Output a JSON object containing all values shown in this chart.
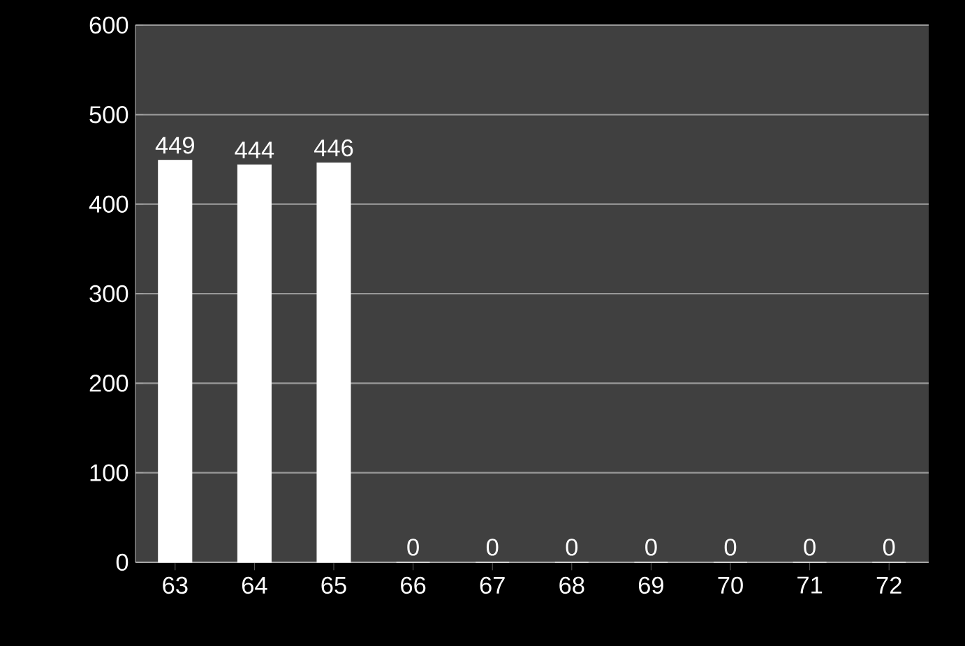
{
  "chart_data": {
    "type": "bar",
    "categories": [
      "63",
      "64",
      "65",
      "66",
      "67",
      "68",
      "69",
      "70",
      "71",
      "72"
    ],
    "values": [
      449,
      444,
      446,
      0,
      0,
      0,
      0,
      0,
      0,
      0
    ],
    "color": "#ffffff",
    "ylim": [
      0,
      600
    ],
    "yticks": [
      0,
      100,
      200,
      300,
      400,
      500,
      600
    ],
    "grid": "y",
    "data_labels": true
  }
}
